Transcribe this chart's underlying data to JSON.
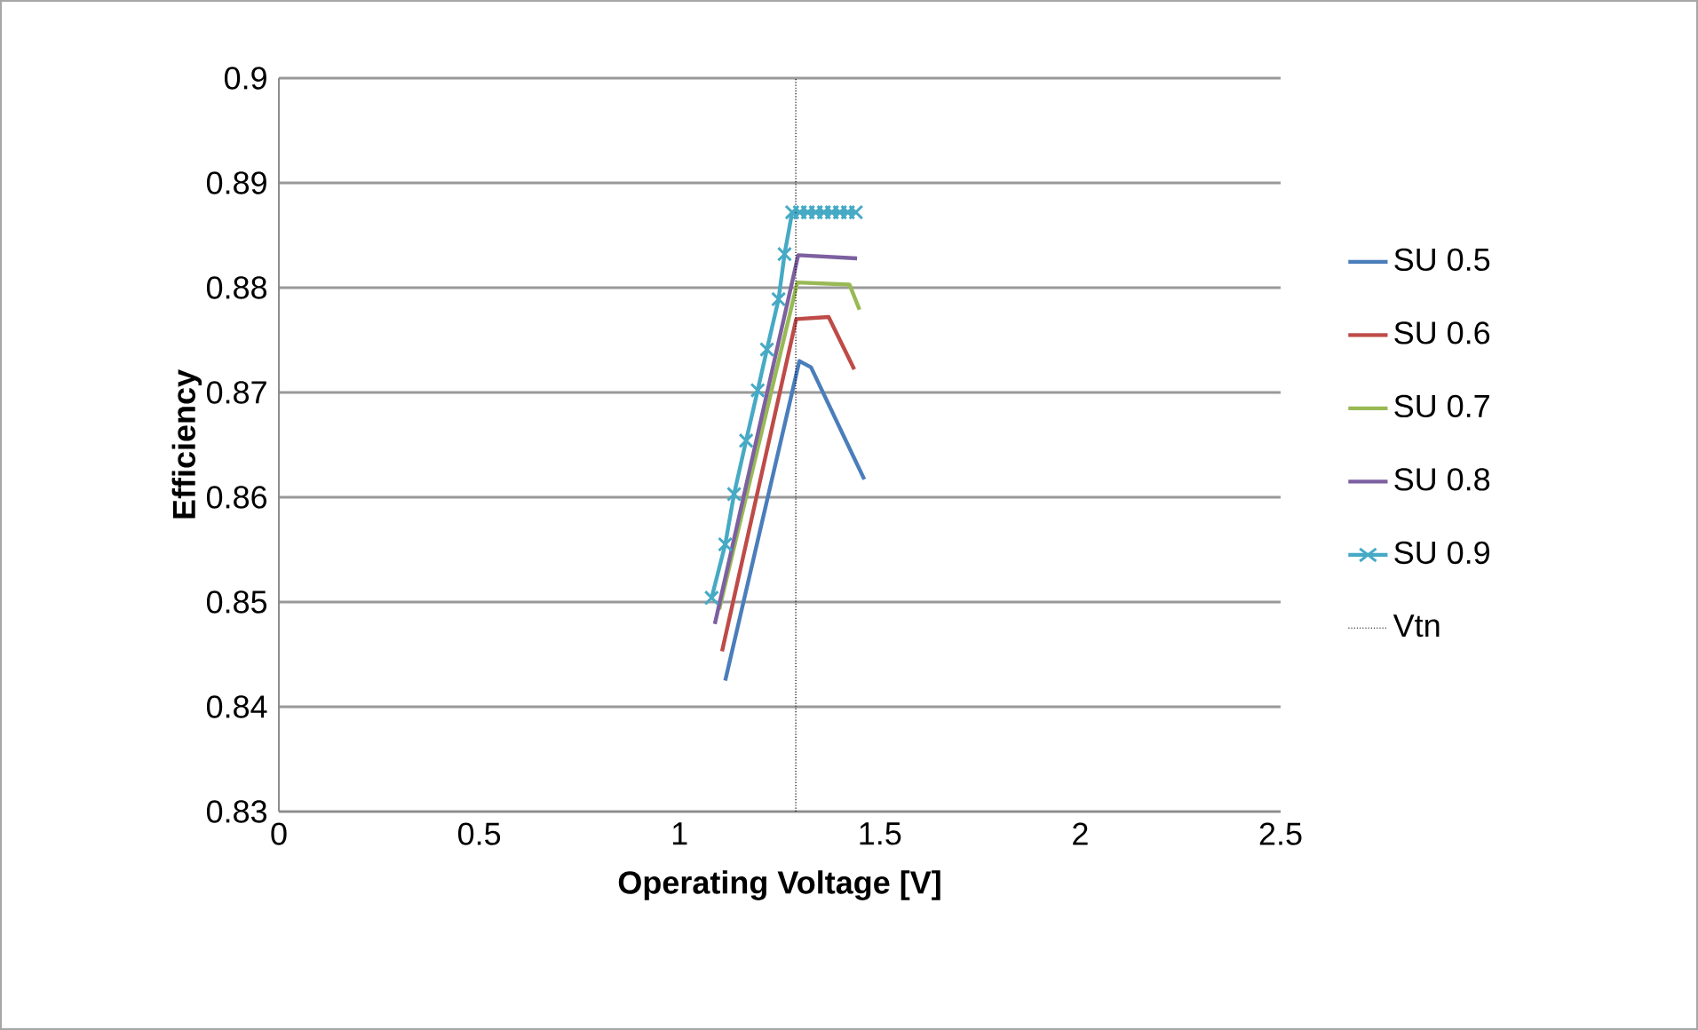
{
  "chart_data": {
    "type": "line",
    "xlabel": "Operating Voltage [V]",
    "ylabel": "Efficiency",
    "xlim": [
      0,
      2.5
    ],
    "xticks": [
      0,
      0.5,
      1,
      1.5,
      2,
      2.5
    ],
    "ylim": [
      0.83,
      0.9
    ],
    "yticks": [
      0.83,
      0.84,
      0.85,
      0.86,
      0.87,
      0.88,
      0.89,
      0.9
    ],
    "grid": "y",
    "legend": "right",
    "series": [
      {
        "name": "SU 0.5",
        "color": "#4a7ebb",
        "x": [
          1.114,
          1.299,
          1.328,
          1.461
        ],
        "values": [
          0.8425,
          0.873,
          0.8724,
          0.8617
        ]
      },
      {
        "name": "SU 0.6",
        "color": "#be4b48",
        "x": [
          1.106,
          1.291,
          1.372,
          1.436
        ],
        "values": [
          0.8453,
          0.877,
          0.8772,
          0.8722
        ]
      },
      {
        "name": "SU 0.7",
        "color": "#98b954",
        "x": [
          1.099,
          1.294,
          1.424,
          1.449
        ],
        "values": [
          0.8493,
          0.8805,
          0.8803,
          0.8779
        ]
      },
      {
        "name": "SU 0.8",
        "color": "#7d60a0",
        "x": [
          1.088,
          1.296,
          1.443
        ],
        "values": [
          0.8479,
          0.8831,
          0.8828
        ]
      },
      {
        "name": "SU 0.9",
        "color": "#46aac5",
        "marker": "cross",
        "x": [
          1.08,
          1.114,
          1.136,
          1.166,
          1.195,
          1.218,
          1.247,
          1.262,
          1.281,
          1.3,
          1.32,
          1.34,
          1.36,
          1.38,
          1.4,
          1.42,
          1.44
        ],
        "values": [
          0.8504,
          0.8555,
          0.8603,
          0.8654,
          0.8702,
          0.8741,
          0.8789,
          0.8832,
          0.8872,
          0.8872,
          0.8872,
          0.8872,
          0.8872,
          0.8872,
          0.8872,
          0.8872,
          0.8872
        ]
      },
      {
        "name": "Vtn",
        "color": "#000000",
        "line_style": "dotted",
        "x": [
          1.29,
          1.29
        ],
        "values": [
          0.83,
          0.9
        ]
      }
    ]
  }
}
